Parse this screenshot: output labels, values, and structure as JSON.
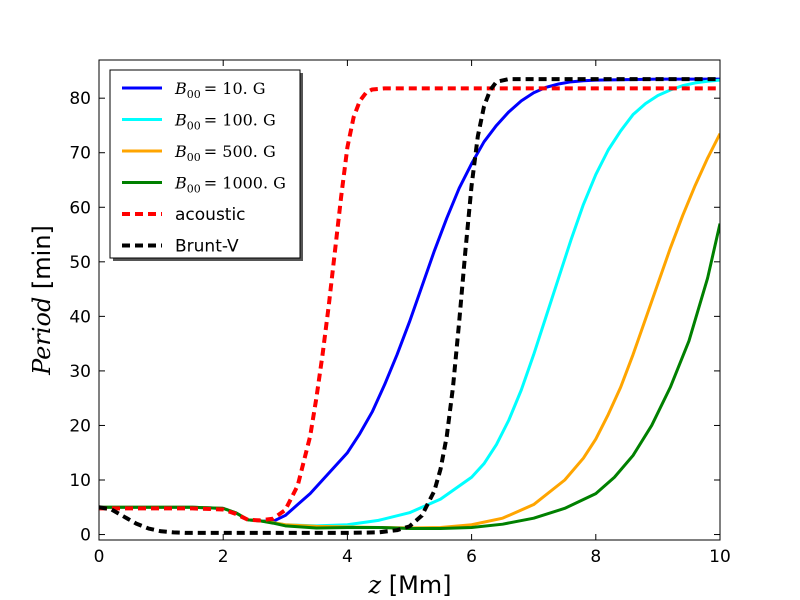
{
  "chart_data": {
    "type": "line",
    "title": "",
    "xlabel": {
      "italic": "z",
      "unit": " [Mm]"
    },
    "ylabel": {
      "italic": "Period",
      "unit": " [min]"
    },
    "xlim": [
      0,
      10
    ],
    "ylim": [
      -1,
      87
    ],
    "xticks": [
      0,
      2,
      4,
      6,
      8,
      10
    ],
    "yticks": [
      0,
      10,
      20,
      30,
      40,
      50,
      60,
      70,
      80
    ],
    "legend_position": "top-left",
    "series": [
      {
        "name": "B_00 = 10. G",
        "label_main": "B",
        "label_sub": "00",
        "label_rest": "= 10. G",
        "color": "#0000ff",
        "dashed": false,
        "x": [
          0,
          0.5,
          1,
          1.5,
          2,
          2.2,
          2.4,
          2.6,
          2.8,
          3,
          3.2,
          3.4,
          3.6,
          3.8,
          4,
          4.2,
          4.4,
          4.6,
          4.8,
          5,
          5.2,
          5.4,
          5.6,
          5.8,
          6,
          6.2,
          6.4,
          6.6,
          6.8,
          7,
          7.2,
          7.4,
          7.6,
          7.8,
          8,
          8.5,
          9,
          9.5,
          10
        ],
        "y": [
          5,
          5,
          5,
          5,
          4.8,
          4,
          2.7,
          2.5,
          2.4,
          3.5,
          5.5,
          7.5,
          10,
          12.5,
          15,
          18.5,
          22.5,
          27.5,
          33,
          39,
          45.5,
          52,
          58,
          63.5,
          68,
          72,
          75,
          77.5,
          79.5,
          81,
          82,
          82.6,
          83,
          83.2,
          83.3,
          83.4,
          83.5,
          83.5,
          83.5
        ]
      },
      {
        "name": "B_00 = 100. G",
        "label_main": "B",
        "label_sub": "00",
        "label_rest": "= 100. G",
        "color": "#00ffff",
        "dashed": false,
        "x": [
          0,
          0.5,
          1,
          1.5,
          2,
          2.2,
          2.4,
          2.6,
          2.8,
          3,
          3.5,
          4,
          4.5,
          5,
          5.5,
          6,
          6.2,
          6.4,
          6.6,
          6.8,
          7,
          7.2,
          7.4,
          7.6,
          7.8,
          8,
          8.2,
          8.4,
          8.6,
          8.8,
          9,
          9.2,
          9.4,
          9.6,
          9.8,
          10
        ],
        "y": [
          5,
          5,
          5,
          5,
          4.8,
          4,
          2.7,
          2.5,
          2.2,
          1.8,
          1.6,
          1.8,
          2.6,
          4,
          6.5,
          10.5,
          13,
          16.5,
          21,
          26.5,
          33,
          40,
          47,
          54,
          60.5,
          66,
          70.5,
          74,
          77,
          79,
          80.5,
          81.5,
          82.3,
          82.8,
          83.1,
          83.3
        ]
      },
      {
        "name": "B_00 = 500. G",
        "label_main": "B",
        "label_sub": "00",
        "label_rest": "= 500. G",
        "color": "#ffa500",
        "dashed": false,
        "x": [
          0,
          0.5,
          1,
          1.5,
          2,
          2.2,
          2.4,
          2.6,
          2.8,
          3,
          3.5,
          4,
          4.5,
          5,
          5.5,
          6,
          6.5,
          7,
          7.5,
          7.8,
          8,
          8.2,
          8.4,
          8.6,
          8.8,
          9,
          9.2,
          9.4,
          9.6,
          9.8,
          10
        ],
        "y": [
          5,
          5,
          5,
          5,
          4.8,
          4,
          2.7,
          2.5,
          2.2,
          1.8,
          1.5,
          1.4,
          1.3,
          1.2,
          1.3,
          1.8,
          3,
          5.5,
          10,
          14,
          17.5,
          22,
          27,
          33,
          39.5,
          46,
          52.5,
          58.5,
          64,
          69,
          73.5
        ]
      },
      {
        "name": "B_00 = 1000. G",
        "label_main": "B",
        "label_sub": "00",
        "label_rest": "= 1000. G",
        "color": "#008000",
        "dashed": false,
        "x": [
          0,
          0.5,
          1,
          1.5,
          2,
          2.2,
          2.4,
          2.6,
          2.8,
          3,
          3.5,
          4,
          4.5,
          5,
          5.5,
          6,
          6.5,
          7,
          7.5,
          8,
          8.3,
          8.6,
          8.9,
          9.2,
          9.5,
          9.8,
          10
        ],
        "y": [
          5,
          5,
          5,
          5,
          4.8,
          4,
          2.7,
          2.5,
          2.1,
          1.6,
          1.2,
          1.3,
          1.3,
          1.1,
          1.1,
          1.3,
          1.9,
          3,
          4.8,
          7.5,
          10.5,
          14.5,
          20,
          27,
          35.5,
          47,
          57
        ]
      },
      {
        "name": "acoustic",
        "label_main": "acoustic",
        "label_sub": "",
        "label_rest": "",
        "color": "#ff0000",
        "dashed": true,
        "x": [
          0,
          0.5,
          1,
          1.5,
          2,
          2.2,
          2.4,
          2.6,
          2.8,
          3,
          3.2,
          3.4,
          3.5,
          3.6,
          3.7,
          3.8,
          3.9,
          4,
          4.1,
          4.2,
          4.3,
          4.4,
          4.6,
          5,
          6,
          7,
          8,
          9,
          10
        ],
        "y": [
          4.8,
          4.8,
          4.8,
          4.8,
          4.6,
          3.8,
          2.7,
          2.6,
          2.9,
          4.5,
          9,
          18,
          25,
          33,
          42,
          52,
          62,
          71,
          76.5,
          79.5,
          81,
          81.6,
          81.8,
          81.8,
          81.8,
          81.8,
          81.8,
          81.8,
          81.8
        ]
      },
      {
        "name": "Brunt-V",
        "label_main": "Brunt-V",
        "label_sub": "",
        "label_rest": "",
        "color": "#000000",
        "dashed": true,
        "x": [
          0,
          0.2,
          0.4,
          0.6,
          0.8,
          1,
          1.2,
          1.4,
          1.6,
          1.8,
          2,
          3,
          4,
          4.5,
          4.8,
          5,
          5.2,
          5.4,
          5.5,
          5.6,
          5.7,
          5.8,
          5.9,
          6,
          6.1,
          6.2,
          6.3,
          6.4,
          6.6,
          7,
          8,
          9,
          10
        ],
        "y": [
          5,
          4.6,
          3.3,
          2,
          1.1,
          0.6,
          0.4,
          0.3,
          0.3,
          0.3,
          0.3,
          0.3,
          0.3,
          0.4,
          0.8,
          1.5,
          3.5,
          8,
          12,
          18,
          27,
          39,
          52,
          64,
          73,
          78.5,
          81.5,
          83,
          83.5,
          83.5,
          83.5,
          83.5,
          83.5
        ]
      }
    ]
  }
}
